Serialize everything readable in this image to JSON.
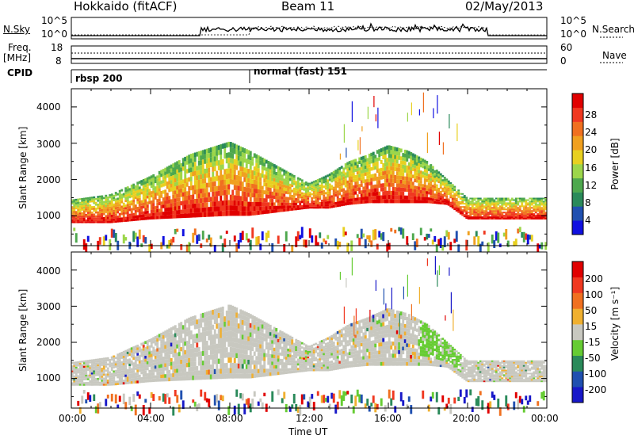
{
  "header": {
    "radar_title": "Hokkaido (fitACF)",
    "beam": "Beam 11",
    "date": "02/May/2013"
  },
  "summary": {
    "nsky_label": "N.Sky",
    "freq_label": "Freq.",
    "freq_unit": "[MHz]",
    "cpid_label": "CPID",
    "nsearch_label": "N.Search",
    "nave_label": "Nave",
    "noise_ticks": [
      "10^5",
      "10^0"
    ],
    "freq_ticks": [
      "18",
      "8"
    ],
    "nave_ticks": [
      "60",
      "0"
    ],
    "cpid_entries": [
      {
        "name": "rbsp",
        "id": "200",
        "start": "00:00"
      },
      {
        "name": "normal (fast)",
        "id": "151",
        "start": "09:00"
      }
    ]
  },
  "power_panel": {
    "ylabel": "Slant Range [km]",
    "yticks": [
      "4000",
      "3000",
      "2000",
      "1000"
    ],
    "colorbar_label": "Power [dB]",
    "colorbar_ticks": [
      "28",
      "24",
      "20",
      "16",
      "12",
      "8",
      "4"
    ],
    "colorbar_colors": [
      "#1010e0",
      "#2050b0",
      "#2a8a5a",
      "#4ea84e",
      "#9cd64a",
      "#e8d020",
      "#f0a020",
      "#f07020",
      "#f03820",
      "#e00000"
    ]
  },
  "velocity_panel": {
    "ylabel": "Slant Range [km]",
    "yticks": [
      "4000",
      "3000",
      "2000",
      "1000"
    ],
    "colorbar_label": "Velocity [m s⁻¹]",
    "colorbar_ticks": [
      "200",
      "100",
      "50",
      "15",
      "-15",
      "-50",
      "-100",
      "-200"
    ],
    "colorbar_colors": [
      "#1818c8",
      "#2050b0",
      "#2a8a5a",
      "#66cc33",
      "#c8c8c0",
      "#f0b030",
      "#f07020",
      "#f03820",
      "#e00000"
    ]
  },
  "xaxis": {
    "label": "Time UT",
    "ticks": [
      "00:00",
      "04:00",
      "08:00",
      "12:00",
      "16:00",
      "20:00",
      "00:00"
    ]
  },
  "chart_data": {
    "type": "heatmap",
    "panels": [
      "Power [dB]",
      "Velocity [m s⁻¹]"
    ],
    "x_range_hours": [
      0,
      24
    ],
    "y_range_km": [
      180,
      4500
    ],
    "echo_band_lower_edge": {
      "t_hours": [
        0,
        2,
        4,
        6,
        8,
        9,
        12,
        13,
        14,
        15,
        16,
        17,
        18,
        19,
        20,
        22,
        24
      ],
      "slant_range_km": [
        800,
        800,
        900,
        950,
        1000,
        1000,
        1200,
        1200,
        1300,
        1350,
        1350,
        1350,
        1350,
        1300,
        900,
        900,
        900
      ]
    },
    "echo_band_upper_edge": {
      "t_hours": [
        0,
        2,
        4,
        6,
        8,
        9,
        12,
        13,
        14,
        15,
        16,
        17,
        18,
        19,
        20,
        22,
        24
      ],
      "slant_range_km": [
        1450,
        1600,
        2100,
        2700,
        3050,
        2800,
        1900,
        2150,
        2500,
        2700,
        2950,
        2800,
        2500,
        2000,
        1500,
        1500,
        1500
      ]
    }
  }
}
